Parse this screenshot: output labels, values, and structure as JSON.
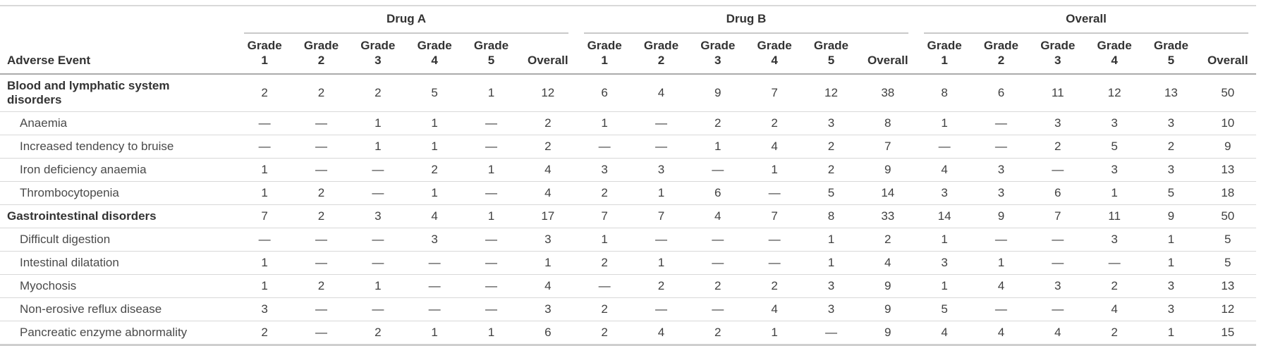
{
  "colors": {
    "text_dark": "#333333",
    "text_body": "#404040",
    "rule_light": "#d8d8d8",
    "rule_spanner": "#c9c9c9",
    "rule_header": "#ababab",
    "rule_bottom": "#cfcfcf"
  },
  "chart_data": {
    "type": "table",
    "row_header": "Adverse Event",
    "column_groups": [
      "Drug A",
      "Drug B",
      "Overall"
    ],
    "sub_columns": [
      "Grade 1",
      "Grade 2",
      "Grade 3",
      "Grade 4",
      "Grade 5",
      "Overall"
    ],
    "rows": [
      {
        "label": "Blood and lymphatic system disorders",
        "category": true,
        "values": [
          "2",
          "2",
          "2",
          "5",
          "1",
          "12",
          "6",
          "4",
          "9",
          "7",
          "12",
          "38",
          "8",
          "6",
          "11",
          "12",
          "13",
          "50"
        ]
      },
      {
        "label": "Anaemia",
        "category": false,
        "values": [
          "—",
          "—",
          "1",
          "1",
          "—",
          "2",
          "1",
          "—",
          "2",
          "2",
          "3",
          "8",
          "1",
          "—",
          "3",
          "3",
          "3",
          "10"
        ]
      },
      {
        "label": "Increased tendency to bruise",
        "category": false,
        "values": [
          "—",
          "—",
          "1",
          "1",
          "—",
          "2",
          "—",
          "—",
          "1",
          "4",
          "2",
          "7",
          "—",
          "—",
          "2",
          "5",
          "2",
          "9"
        ]
      },
      {
        "label": "Iron deficiency anaemia",
        "category": false,
        "values": [
          "1",
          "—",
          "—",
          "2",
          "1",
          "4",
          "3",
          "3",
          "—",
          "1",
          "2",
          "9",
          "4",
          "3",
          "—",
          "3",
          "3",
          "13"
        ]
      },
      {
        "label": "Thrombocytopenia",
        "category": false,
        "values": [
          "1",
          "2",
          "—",
          "1",
          "—",
          "4",
          "2",
          "1",
          "6",
          "—",
          "5",
          "14",
          "3",
          "3",
          "6",
          "1",
          "5",
          "18"
        ]
      },
      {
        "label": "Gastrointestinal disorders",
        "category": true,
        "values": [
          "7",
          "2",
          "3",
          "4",
          "1",
          "17",
          "7",
          "7",
          "4",
          "7",
          "8",
          "33",
          "14",
          "9",
          "7",
          "11",
          "9",
          "50"
        ]
      },
      {
        "label": "Difficult digestion",
        "category": false,
        "values": [
          "—",
          "—",
          "—",
          "3",
          "—",
          "3",
          "1",
          "—",
          "—",
          "—",
          "1",
          "2",
          "1",
          "—",
          "—",
          "3",
          "1",
          "5"
        ]
      },
      {
        "label": "Intestinal dilatation",
        "category": false,
        "values": [
          "1",
          "—",
          "—",
          "—",
          "—",
          "1",
          "2",
          "1",
          "—",
          "—",
          "1",
          "4",
          "3",
          "1",
          "—",
          "—",
          "1",
          "5"
        ]
      },
      {
        "label": "Myochosis",
        "category": false,
        "values": [
          "1",
          "2",
          "1",
          "—",
          "—",
          "4",
          "—",
          "2",
          "2",
          "2",
          "3",
          "9",
          "1",
          "4",
          "3",
          "2",
          "3",
          "13"
        ]
      },
      {
        "label": "Non-erosive reflux disease",
        "category": false,
        "values": [
          "3",
          "—",
          "—",
          "—",
          "—",
          "3",
          "2",
          "—",
          "—",
          "4",
          "3",
          "9",
          "5",
          "—",
          "—",
          "4",
          "3",
          "12"
        ]
      },
      {
        "label": "Pancreatic enzyme abnormality",
        "category": false,
        "values": [
          "2",
          "—",
          "2",
          "1",
          "1",
          "6",
          "2",
          "4",
          "2",
          "1",
          "—",
          "9",
          "4",
          "4",
          "4",
          "2",
          "1",
          "15"
        ]
      }
    ]
  }
}
